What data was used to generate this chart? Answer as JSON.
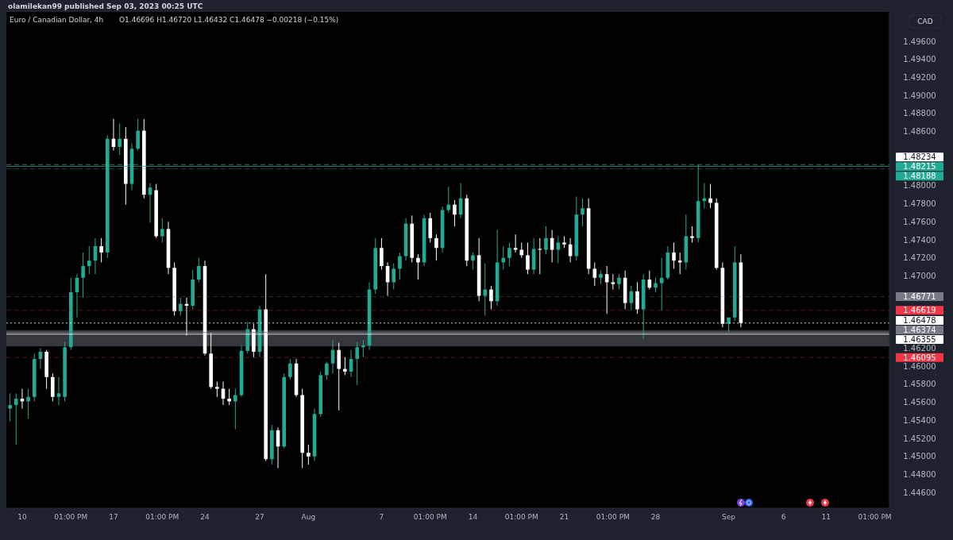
{
  "chart_data": {
    "type": "candlestick",
    "title": "Euro / Canadian Dollar, 4h",
    "subtitle": "O1.46696 H1.46720 L1.46432 C1.46478 −0.00218 (−0.15%)",
    "annotations": [
      "olamilekan99 published Sep 03, 2023 00:25 UTC"
    ],
    "ylabel": "CAD",
    "colors": [
      "#22ab94",
      "#22ab94",
      "#ffffff",
      "#22ab94",
      "#22ab94",
      "#22ab94",
      "#ffffff",
      "#ffffff",
      "#22ab94",
      "#22ab94",
      "#22ab94",
      "#22ab94",
      "#22ab94",
      "#22ab94",
      "#22ab94",
      "#ffffff",
      "#22ab94",
      "#ffffff",
      "#22ab94",
      "#ffffff",
      "#22ab94",
      "#22ab94",
      "#ffffff",
      "#22ab94",
      "#ffffff",
      "#22ab94",
      "#ffffff",
      "#ffffff",
      "#22ab94",
      "#ffffff",
      "#22ab94",
      "#22ab94",
      "#ffffff",
      "#ffffff",
      "#ffffff",
      "#ffffff",
      "#ffffff",
      "#22ab94",
      "#22ab94",
      "#22ab94",
      "#ffffff",
      "#22ab94",
      "#ffffff",
      "#22ab94",
      "#ffffff",
      "#22ab94",
      "#22ab94",
      "#ffffff",
      "#ffffff",
      "#ffffff",
      "#22ab94",
      "#22ab94",
      "#22ab94",
      "#22ab94",
      "#ffffff",
      "#ffffff",
      "#22ab94",
      "#22ab94",
      "#22ab94",
      "#22ab94",
      "#22ab94",
      "#ffffff",
      "#ffffff",
      "#22ab94",
      "#22ab94",
      "#22ab94",
      "#ffffff",
      "#ffffff",
      "#22ab94",
      "#ffffff",
      "#ffffff",
      "#22ab94",
      "#22ab94",
      "#ffffff",
      "#22ab94",
      "#ffffff",
      "#22ab94",
      "#ffffff",
      "#22ab94",
      "#ffffff",
      "#22ab94",
      "#22ab94",
      "#22ab94",
      "#ffffff",
      "#ffffff",
      "#ffffff",
      "#22ab94",
      "#ffffff",
      "#22ab94",
      "#ffffff",
      "#22ab94",
      "#ffffff",
      "#ffffff",
      "#22ab94",
      "#22ab94",
      "#ffffff",
      "#ffffff",
      "#22ab94",
      "#ffffff",
      "#ffffff",
      "#22ab94",
      "#ffffff",
      "#22ab94",
      "#ffffff",
      "#22ab94",
      "#ffffff",
      "#22ab94",
      "#22ab94",
      "#22ab94",
      "#ffffff",
      "#ffffff",
      "#22ab94",
      "#ffffff",
      "#22ab94",
      "#22ab94",
      "#ffffff",
      "#ffffff",
      "#ffffff",
      "#22ab94",
      "#22ab94",
      "#ffffff",
      null,
      null,
      null,
      null,
      null,
      null,
      null,
      null,
      null,
      null,
      null,
      null,
      null,
      null,
      null,
      null,
      null,
      null,
      null,
      null,
      null,
      null,
      null,
      null
    ],
    "categories": [
      null,
      null,
      "10",
      null,
      null,
      null,
      null,
      null,
      null,
      null,
      "01:00 PM",
      null,
      null,
      null,
      null,
      null,
      null,
      "17",
      null,
      null,
      null,
      null,
      null,
      null,
      null,
      "01:00 PM",
      null,
      null,
      null,
      null,
      null,
      null,
      "24",
      null,
      null,
      null,
      null,
      null,
      null,
      null,
      null,
      "27",
      null,
      null,
      null,
      null,
      null,
      null,
      null,
      "Aug",
      null,
      null,
      null,
      null,
      null,
      null,
      null,
      null,
      null,
      null,
      null,
      "7",
      null,
      null,
      null,
      null,
      null,
      null,
      null,
      "01:00 PM",
      null,
      null,
      null,
      null,
      null,
      null,
      "14",
      null,
      null,
      null,
      null,
      null,
      null,
      null,
      "01:00 PM",
      null,
      null,
      null,
      null,
      null,
      null,
      "21",
      null,
      null,
      null,
      null,
      null,
      null,
      null,
      "01:00 PM",
      null,
      null,
      null,
      null,
      null,
      null,
      "28",
      null,
      null,
      null,
      null,
      null,
      null,
      null,
      null,
      null,
      null,
      null,
      "Sep",
      null,
      null,
      null,
      null,
      null,
      null,
      null,
      null,
      "6",
      null,
      null,
      null,
      null,
      null,
      null,
      "11",
      null,
      null,
      null,
      null,
      null,
      null,
      null,
      "01:00 PM",
      null,
      null
    ],
    "ohlc": [
      [
        1.4553,
        1.457,
        1.4539,
        1.4557
      ],
      [
        1.4557,
        1.457,
        1.4513,
        1.4564
      ],
      [
        1.4564,
        1.4575,
        1.4553,
        1.4561
      ],
      [
        1.4561,
        1.4575,
        1.4542,
        1.4566
      ],
      [
        1.4566,
        1.4614,
        1.4561,
        1.4608
      ],
      [
        1.4608,
        1.462,
        1.4597,
        1.4616
      ],
      [
        1.4616,
        1.4618,
        1.4575,
        1.4588
      ],
      [
        1.4588,
        1.4592,
        1.4561,
        1.4566
      ],
      [
        1.4566,
        1.4588,
        1.4557,
        1.457
      ],
      [
        1.4566,
        1.4627,
        1.4561,
        1.4621
      ],
      [
        1.4621,
        1.4698,
        1.4618,
        1.4682
      ],
      [
        1.4682,
        1.4702,
        1.4654,
        1.4698
      ],
      [
        1.4698,
        1.4726,
        1.4676,
        1.4711
      ],
      [
        1.4711,
        1.4733,
        1.4702,
        1.4717
      ],
      [
        1.4717,
        1.4742,
        1.4702,
        1.4733
      ],
      [
        1.4733,
        1.4742,
        1.4715,
        1.4726
      ],
      [
        1.4726,
        1.4856,
        1.472,
        1.4852
      ],
      [
        1.4852,
        1.4874,
        1.4839,
        1.4843
      ],
      [
        1.4843,
        1.4869,
        1.4834,
        1.4852
      ],
      [
        1.4852,
        1.4865,
        1.4779,
        1.4802
      ],
      [
        1.4802,
        1.4847,
        1.4795,
        1.4841
      ],
      [
        1.4841,
        1.4874,
        1.4839,
        1.4861
      ],
      [
        1.4861,
        1.4874,
        1.4786,
        1.479
      ],
      [
        1.479,
        1.4803,
        1.4759,
        1.4798
      ],
      [
        1.4795,
        1.4802,
        1.4742,
        1.4744
      ],
      [
        1.4744,
        1.4764,
        1.4737,
        1.4752
      ],
      [
        1.4752,
        1.476,
        1.4702,
        1.4709
      ],
      [
        1.4709,
        1.4715,
        1.4656,
        1.4661
      ],
      [
        1.4661,
        1.4676,
        1.4656,
        1.4669
      ],
      [
        1.4669,
        1.4676,
        1.4634,
        1.4667
      ],
      [
        1.4667,
        1.4707,
        1.4663,
        1.4696
      ],
      [
        1.4696,
        1.472,
        1.4693,
        1.4711
      ],
      [
        1.4711,
        1.4717,
        1.4612,
        1.4614
      ],
      [
        1.4614,
        1.4637,
        1.4575,
        1.4577
      ],
      [
        1.4577,
        1.4583,
        1.4566,
        1.4575
      ],
      [
        1.4575,
        1.4583,
        1.4557,
        1.4564
      ],
      [
        1.4564,
        1.4575,
        1.4557,
        1.4561
      ],
      [
        1.4561,
        1.4575,
        1.453,
        1.4568
      ],
      [
        1.4568,
        1.4623,
        1.4566,
        1.4617
      ],
      [
        1.4617,
        1.4649,
        1.4614,
        1.4641
      ],
      [
        1.4641,
        1.4647,
        1.461,
        1.4616
      ],
      [
        1.4616,
        1.4667,
        1.461,
        1.4663
      ],
      [
        1.4663,
        1.4702,
        1.4495,
        1.4497
      ],
      [
        1.4497,
        1.4535,
        1.4491,
        1.4529
      ],
      [
        1.4529,
        1.4532,
        1.4487,
        1.4511
      ],
      [
        1.4511,
        1.4592,
        1.4509,
        1.4588
      ],
      [
        1.4588,
        1.4608,
        1.4585,
        1.4603
      ],
      [
        1.4603,
        1.4608,
        1.4566,
        1.4568
      ],
      [
        1.4568,
        1.4575,
        1.4487,
        1.4504
      ],
      [
        1.4504,
        1.4513,
        1.4491,
        1.45
      ],
      [
        1.45,
        1.4553,
        1.4495,
        1.4547
      ],
      [
        1.4547,
        1.4594,
        1.4544,
        1.459
      ],
      [
        1.459,
        1.4605,
        1.4585,
        1.4603
      ],
      [
        1.4603,
        1.4629,
        1.4592,
        1.4618
      ],
      [
        1.4618,
        1.4626,
        1.4551,
        1.4597
      ],
      [
        1.4597,
        1.461,
        1.459,
        1.4594
      ],
      [
        1.4594,
        1.4618,
        1.4588,
        1.4608
      ],
      [
        1.4608,
        1.4627,
        1.4579,
        1.4621
      ],
      [
        1.4621,
        1.4629,
        1.461,
        1.4623
      ],
      [
        1.4623,
        1.4693,
        1.4618,
        1.4685
      ],
      [
        1.4685,
        1.4742,
        1.468,
        1.4731
      ],
      [
        1.4731,
        1.4742,
        1.4707,
        1.4711
      ],
      [
        1.4711,
        1.4715,
        1.4678,
        1.4693
      ],
      [
        1.4693,
        1.4714,
        1.4685,
        1.4708
      ],
      [
        1.4708,
        1.4726,
        1.4696,
        1.4722
      ],
      [
        1.4722,
        1.4764,
        1.4717,
        1.4758
      ],
      [
        1.4758,
        1.4767,
        1.4715,
        1.472
      ],
      [
        1.472,
        1.4724,
        1.4696,
        1.4715
      ],
      [
        1.4715,
        1.4768,
        1.4711,
        1.4764
      ],
      [
        1.4764,
        1.477,
        1.4737,
        1.4742
      ],
      [
        1.4742,
        1.4746,
        1.4717,
        1.4731
      ],
      [
        1.4731,
        1.4777,
        1.4726,
        1.4773
      ],
      [
        1.4773,
        1.4799,
        1.477,
        1.4779
      ],
      [
        1.4779,
        1.4784,
        1.4755,
        1.4768
      ],
      [
        1.4768,
        1.4803,
        1.4764,
        1.4786
      ],
      [
        1.4786,
        1.479,
        1.4711,
        1.4717
      ],
      [
        1.4717,
        1.4726,
        1.4707,
        1.4723
      ],
      [
        1.4723,
        1.4742,
        1.4672,
        1.4678
      ],
      [
        1.4678,
        1.4714,
        1.4656,
        1.4685
      ],
      [
        1.4685,
        1.4689,
        1.4663,
        1.4672
      ],
      [
        1.4672,
        1.4751,
        1.4667,
        1.4715
      ],
      [
        1.4715,
        1.4733,
        1.4707,
        1.472
      ],
      [
        1.472,
        1.4737,
        1.4711,
        1.4731
      ],
      [
        1.4731,
        1.4746,
        1.4726,
        1.4729
      ],
      [
        1.4729,
        1.4737,
        1.472,
        1.4723
      ],
      [
        1.4723,
        1.4737,
        1.4702,
        1.4707
      ],
      [
        1.4707,
        1.4742,
        1.4702,
        1.473
      ],
      [
        1.473,
        1.4742,
        1.4702,
        1.4729
      ],
      [
        1.4729,
        1.4755,
        1.4724,
        1.4742
      ],
      [
        1.4742,
        1.4751,
        1.4715,
        1.4729
      ],
      [
        1.4729,
        1.4744,
        1.4714,
        1.4737
      ],
      [
        1.4737,
        1.4744,
        1.4731,
        1.4735
      ],
      [
        1.4735,
        1.4742,
        1.4715,
        1.4722
      ],
      [
        1.4722,
        1.4788,
        1.4717,
        1.4768
      ],
      [
        1.4768,
        1.4786,
        1.4755,
        1.4775
      ],
      [
        1.4775,
        1.4786,
        1.4702,
        1.4708
      ],
      [
        1.4708,
        1.4715,
        1.4689,
        1.4698
      ],
      [
        1.4698,
        1.4706,
        1.4691,
        1.4702
      ],
      [
        1.4702,
        1.4711,
        1.4658,
        1.4693
      ],
      [
        1.4693,
        1.4702,
        1.4685,
        1.4691
      ],
      [
        1.4691,
        1.4702,
        1.4685,
        1.4698
      ],
      [
        1.4698,
        1.4706,
        1.4663,
        1.467
      ],
      [
        1.467,
        1.4689,
        1.4662,
        1.4683
      ],
      [
        1.4683,
        1.4693,
        1.4658,
        1.4663
      ],
      [
        1.4663,
        1.4702,
        1.463,
        1.4696
      ],
      [
        1.4696,
        1.4706,
        1.4685,
        1.4687
      ],
      [
        1.4687,
        1.4698,
        1.4682,
        1.4692
      ],
      [
        1.4692,
        1.472,
        1.4662,
        1.4698
      ],
      [
        1.4698,
        1.4733,
        1.4696,
        1.4726
      ],
      [
        1.4726,
        1.4737,
        1.4708,
        1.4717
      ],
      [
        1.4717,
        1.4726,
        1.4702,
        1.4715
      ],
      [
        1.4715,
        1.4768,
        1.4707,
        1.4744
      ],
      [
        1.4744,
        1.4755,
        1.4737,
        1.4742
      ],
      [
        1.4742,
        1.4823,
        1.4737,
        1.4783
      ],
      [
        1.4783,
        1.4803,
        1.4775,
        1.4786
      ],
      [
        1.4786,
        1.4802,
        1.4775,
        1.4781
      ],
      [
        1.4781,
        1.4786,
        1.4707,
        1.4709
      ],
      [
        1.4709,
        1.4715,
        1.4643,
        1.4647
      ],
      [
        1.4647,
        1.4654,
        1.4638,
        1.4654
      ],
      [
        1.4654,
        1.4733,
        1.465,
        1.4715
      ],
      [
        1.4715,
        1.4724,
        1.4643,
        1.4648
      ],
      null,
      null,
      null,
      null,
      null,
      null,
      null,
      null,
      null,
      null,
      null,
      null,
      null,
      null,
      null,
      null,
      null,
      null,
      null,
      null,
      null,
      null,
      null,
      null
    ],
    "ylim": [
      1.44426,
      1.49926
    ],
    "yticks": [
      {
        "value": 1.446,
        "label": "1.44600"
      },
      {
        "value": 1.448,
        "label": "1.44800"
      },
      {
        "value": 1.45,
        "label": "1.45000"
      },
      {
        "value": 1.452,
        "label": "1.45200"
      },
      {
        "value": 1.454,
        "label": "1.45400"
      },
      {
        "value": 1.456,
        "label": "1.45600"
      },
      {
        "value": 1.458,
        "label": "1.45800"
      },
      {
        "value": 1.46,
        "label": "1.46000"
      },
      {
        "value": 1.462,
        "label": "1.46200"
      },
      {
        "value": 1.47,
        "label": "1.47000"
      },
      {
        "value": 1.472,
        "label": "1.47200"
      },
      {
        "value": 1.474,
        "label": "1.47400"
      },
      {
        "value": 1.476,
        "label": "1.47600"
      },
      {
        "value": 1.478,
        "label": "1.47800"
      },
      {
        "value": 1.48,
        "label": "1.48000"
      },
      {
        "value": 1.486,
        "label": "1.48600"
      },
      {
        "value": 1.488,
        "label": "1.48800"
      },
      {
        "value": 1.49,
        "label": "1.49000"
      },
      {
        "value": 1.492,
        "label": "1.49200"
      },
      {
        "value": 1.494,
        "label": "1.49400"
      },
      {
        "value": 1.496,
        "label": "1.49600"
      }
    ],
    "ref_lines": [
      {
        "axis": "y",
        "value": 1.48234,
        "label": "1.48234",
        "color": "#ffffff",
        "line_style": "dashed"
      },
      {
        "axis": "y",
        "value": 1.48215,
        "label": "1.48215",
        "color": "#22ab94",
        "line_style": "solid"
      },
      {
        "axis": "y",
        "value": 1.48188,
        "label": "1.48188",
        "color": "#22ab94",
        "line_style": "dashed"
      },
      {
        "axis": "y",
        "value": 1.46771,
        "label": "1.46771",
        "color": "#787b86",
        "line_style": "dashed"
      },
      {
        "axis": "y",
        "value": 1.46619,
        "label": "1.46619",
        "color": "#f23645",
        "line_style": "dashed"
      },
      {
        "axis": "y",
        "value": 1.46478,
        "label": "1.46478",
        "color": "#ffffff",
        "line_style": "dotted"
      },
      {
        "axis": "y",
        "value": 1.46374,
        "label": "1.46374",
        "color": "#787b86",
        "line_style": "solid"
      },
      {
        "axis": "y",
        "value": 1.46355,
        "label": "1.46355",
        "color": "#ffffff",
        "line_style": "solid"
      },
      {
        "axis": "y",
        "value": 1.46095,
        "label": "1.46095",
        "color": "#f23645",
        "line_style": "dashed"
      }
    ],
    "bands": [
      {
        "axis": "y",
        "from": 1.4622,
        "to": 1.464,
        "color": "#787b86"
      }
    ]
  }
}
